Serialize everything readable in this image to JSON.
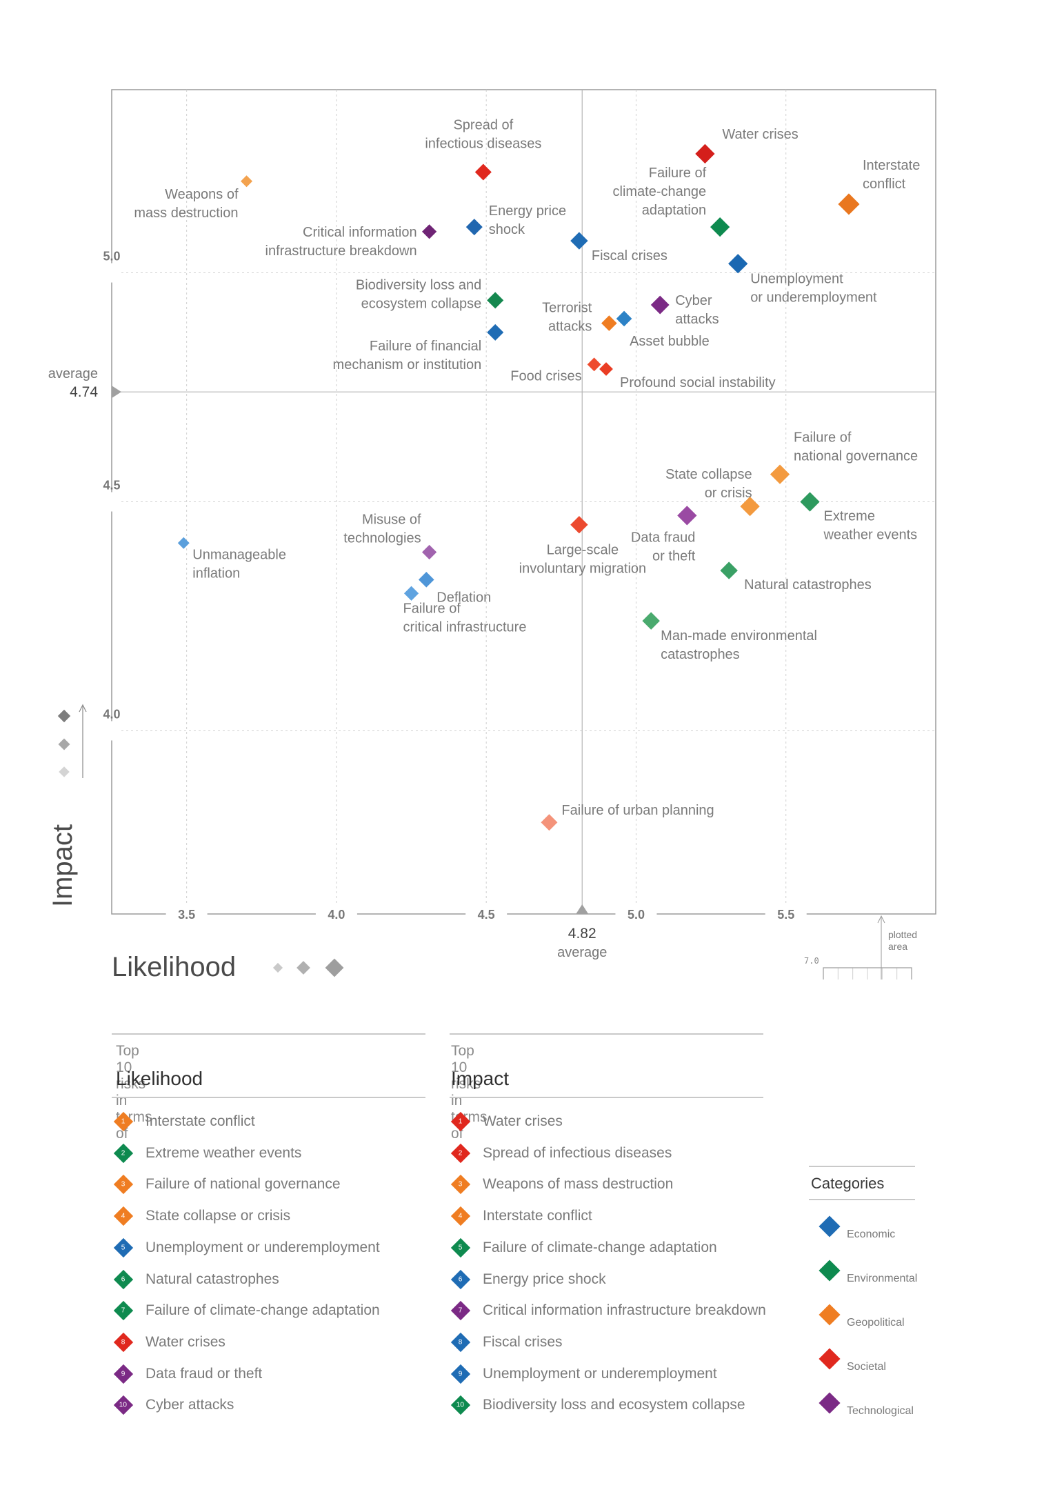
{
  "chart_data": {
    "type": "scatter",
    "xlabel": "Likelihood",
    "ylabel": "Impact",
    "xlim": [
      3.25,
      6.0
    ],
    "ylim": [
      3.6,
      5.4
    ],
    "x_ticks": [
      "3.5",
      "4.0",
      "4.5",
      "5.0",
      "5.5"
    ],
    "y_ticks": [
      "4.0",
      "4.5",
      "5.0"
    ],
    "x_average": {
      "value": "4.82",
      "label": "average"
    },
    "y_average": {
      "value": "4.74",
      "label": "average"
    },
    "colors": {
      "Economic": "#1f6cb4",
      "Environmental": "#0e8a4f",
      "Geopolitical": "#ef7d22",
      "Societal": "#e0281e",
      "Technological": "#7b2a85"
    },
    "points": [
      {
        "label": "Weapons of mass destruction",
        "category": "Geopolitical",
        "x": 3.7,
        "y": 5.2,
        "shade": "#f3a24e"
      },
      {
        "label": "Spread of infectious diseases",
        "category": "Societal",
        "x": 4.49,
        "y": 5.22,
        "shade": "#e0281e"
      },
      {
        "label": "Water crises",
        "category": "Societal",
        "x": 5.23,
        "y": 5.26,
        "shade": "#d41f1b"
      },
      {
        "label": "Interstate conflict",
        "category": "Geopolitical",
        "x": 5.71,
        "y": 5.15,
        "shade": "#e9771f"
      },
      {
        "label": "Critical information infrastructure breakdown",
        "category": "Technological",
        "x": 4.31,
        "y": 5.09,
        "shade": "#6f2475"
      },
      {
        "label": "Energy price shock",
        "category": "Economic",
        "x": 4.46,
        "y": 5.1,
        "shade": "#2167b0"
      },
      {
        "label": "Fiscal crises",
        "category": "Economic",
        "x": 4.81,
        "y": 5.07,
        "shade": "#1f6cb4"
      },
      {
        "label": "Failure of climate-change adaptation",
        "category": "Environmental",
        "x": 5.28,
        "y": 5.1,
        "shade": "#0e8a4f"
      },
      {
        "label": "Unemployment or underemployment",
        "category": "Economic",
        "x": 5.34,
        "y": 5.02,
        "shade": "#1a68b2"
      },
      {
        "label": "Biodiversity loss and ecosystem collapse",
        "category": "Environmental",
        "x": 4.53,
        "y": 4.94,
        "shade": "#15884f"
      },
      {
        "label": "Cyber attacks",
        "category": "Technological",
        "x": 5.08,
        "y": 4.93,
        "shade": "#7b2a85"
      },
      {
        "label": "Terrorist attacks",
        "category": "Geopolitical",
        "x": 4.91,
        "y": 4.89,
        "shade": "#ef7d22"
      },
      {
        "label": "Asset bubble",
        "category": "Economic",
        "x": 4.96,
        "y": 4.9,
        "shade": "#2c82c6"
      },
      {
        "label": "Failure of financial mechanism or institution",
        "category": "Economic",
        "x": 4.53,
        "y": 4.87,
        "shade": "#1f6cb4"
      },
      {
        "label": "Food crises",
        "category": "Societal",
        "x": 4.86,
        "y": 4.8,
        "shade": "#ee4b2e"
      },
      {
        "label": "Profound social instability",
        "category": "Societal",
        "x": 4.9,
        "y": 4.79,
        "shade": "#ea3d24"
      },
      {
        "label": "Failure of national governance",
        "category": "Geopolitical",
        "x": 5.48,
        "y": 4.56,
        "shade": "#f39a3f"
      },
      {
        "label": "Extreme weather events",
        "category": "Environmental",
        "x": 5.58,
        "y": 4.5,
        "shade": "#2e9a5e"
      },
      {
        "label": "State collapse or crisis",
        "category": "Geopolitical",
        "x": 5.38,
        "y": 4.49,
        "shade": "#f39a3f"
      },
      {
        "label": "Data fraud or theft",
        "category": "Technological",
        "x": 5.17,
        "y": 4.47,
        "shade": "#9a4aa3"
      },
      {
        "label": "Large-scale involuntary migration",
        "category": "Societal",
        "x": 4.81,
        "y": 4.45,
        "shade": "#ec4a2f"
      },
      {
        "label": "Unmanageable inflation",
        "category": "Economic",
        "x": 3.49,
        "y": 4.41,
        "shade": "#5a9fdc"
      },
      {
        "label": "Misuse of technologies",
        "category": "Technological",
        "x": 4.31,
        "y": 4.39,
        "shade": "#a163ae"
      },
      {
        "label": "Deflation",
        "category": "Economic",
        "x": 4.3,
        "y": 4.33,
        "shade": "#4f96d8"
      },
      {
        "label": "Failure of critical infrastructure",
        "category": "Economic",
        "x": 4.25,
        "y": 4.3,
        "shade": "#5fa3e0"
      },
      {
        "label": "Natural catastrophes",
        "category": "Environmental",
        "x": 5.31,
        "y": 4.35,
        "shade": "#3aa065"
      },
      {
        "label": "Man-made environmental catastrophes",
        "category": "Environmental",
        "x": 5.05,
        "y": 4.24,
        "shade": "#4aaa6e"
      },
      {
        "label": "Failure of urban planning",
        "category": "Societal",
        "x": 4.71,
        "y": 3.8,
        "shade": "#f4937a"
      }
    ]
  },
  "labels": [
    [
      "Weapons of",
      "mass destruction"
    ],
    [
      "Spread of",
      "infectious diseases"
    ],
    [
      "Water crises"
    ],
    [
      "Interstate",
      "conflict"
    ],
    [
      "Critical information",
      "infrastructure breakdown"
    ],
    [
      "Energy price",
      "shock"
    ],
    [
      "Fiscal crises"
    ],
    [
      "Failure of",
      "climate-change",
      "adaptation"
    ],
    [
      "Unemployment",
      "or underemployment"
    ],
    [
      "Biodiversity loss and",
      "ecosystem collapse"
    ],
    [
      "Cyber",
      "attacks"
    ],
    [
      "Terrorist",
      "attacks"
    ],
    [
      "Asset bubble"
    ],
    [
      "Failure of financial",
      "mechanism or institution"
    ],
    [
      "Food crises"
    ],
    [
      "Profound social instability"
    ],
    [
      "Failure of",
      "national governance"
    ],
    [
      "Extreme",
      "weather events"
    ],
    [
      "State collapse",
      "or crisis"
    ],
    [
      "Data fraud",
      "or theft"
    ],
    [
      "Large-scale",
      "involuntary migration"
    ],
    [
      "Unmanageable",
      "inflation"
    ],
    [
      "Misuse of",
      "technologies"
    ],
    [
      "Deflation"
    ],
    [
      "Failure of",
      "critical infrastructure"
    ],
    [
      "Natural catastrophes"
    ],
    [
      "Man-made environmental",
      "catastrophes"
    ],
    [
      "Failure of urban planning"
    ]
  ],
  "inset": {
    "top_label": "plotted area",
    "y_max": "7.0",
    "x_min": "1.0",
    "x_max": "7.0"
  },
  "likelihood_list": {
    "subtitle": "Top 10 risks in terms of",
    "title": "Likelihood",
    "items": [
      {
        "n": "1",
        "text": "Interstate conflict",
        "color": "#ef7d22"
      },
      {
        "n": "2",
        "text": "Extreme weather events",
        "color": "#0e8a4f"
      },
      {
        "n": "3",
        "text": "Failure of national governance",
        "color": "#ef7d22"
      },
      {
        "n": "4",
        "text": "State collapse or crisis",
        "color": "#ef7d22"
      },
      {
        "n": "5",
        "text": "Unemployment or underemployment",
        "color": "#1f6cb4"
      },
      {
        "n": "6",
        "text": "Natural catastrophes",
        "color": "#0e8a4f"
      },
      {
        "n": "7",
        "text": "Failure of climate-change adaptation",
        "color": "#0e8a4f"
      },
      {
        "n": "8",
        "text": "Water crises",
        "color": "#e0281e"
      },
      {
        "n": "9",
        "text": "Data fraud or theft",
        "color": "#7b2a85"
      },
      {
        "n": "10",
        "text": "Cyber attacks",
        "color": "#7b2a85"
      }
    ]
  },
  "impact_list": {
    "subtitle": "Top 10 risks in terms of",
    "title": "Impact",
    "items": [
      {
        "n": "1",
        "text": "Water crises",
        "color": "#e0281e"
      },
      {
        "n": "2",
        "text": "Spread of infectious diseases",
        "color": "#e0281e"
      },
      {
        "n": "3",
        "text": "Weapons of mass destruction",
        "color": "#ef7d22"
      },
      {
        "n": "4",
        "text": "Interstate conflict",
        "color": "#ef7d22"
      },
      {
        "n": "5",
        "text": "Failure of climate-change adaptation",
        "color": "#0e8a4f"
      },
      {
        "n": "6",
        "text": "Energy price shock",
        "color": "#1f6cb4"
      },
      {
        "n": "7",
        "text": "Critical information infrastructure breakdown",
        "color": "#7b2a85"
      },
      {
        "n": "8",
        "text": "Fiscal crises",
        "color": "#1f6cb4"
      },
      {
        "n": "9",
        "text": "Unemployment or underemployment",
        "color": "#1f6cb4"
      },
      {
        "n": "10",
        "text": "Biodiversity loss and ecosystem collapse",
        "color": "#0e8a4f"
      }
    ]
  },
  "categories": {
    "title": "Categories",
    "items": [
      "Economic",
      "Environmental",
      "Geopolitical",
      "Societal",
      "Technological"
    ]
  }
}
